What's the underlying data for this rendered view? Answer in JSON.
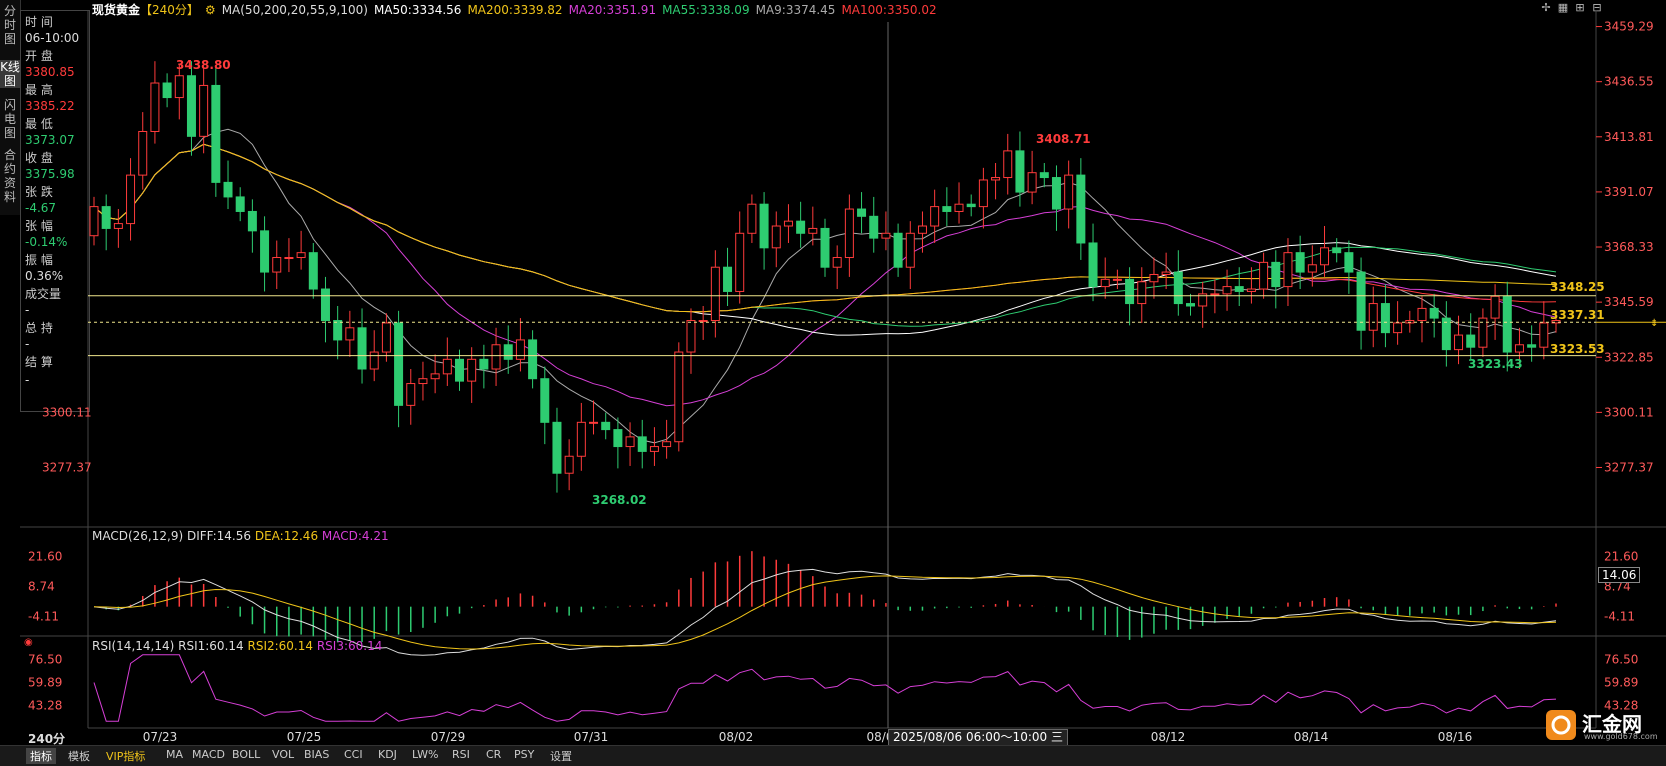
{
  "header": {
    "instrument": "现货黄金",
    "period": "【240分】",
    "ma_label": "MA(50,200,20,55,9,100)",
    "ma50": "MA50:3334.56",
    "ma200": "MA200:3339.82",
    "ma20": "MA20:3351.91",
    "ma55": "MA55:3338.09",
    "ma9": "MA9:3374.45",
    "ma100": "MA100:3350.02",
    "colors": {
      "ma50": "#ffffff",
      "ma200": "#f0c419",
      "ma20": "#d63fd6",
      "ma55": "#2ecc71",
      "ma9": "#aaaaaa",
      "ma100": "#ff3b3b"
    }
  },
  "left_tabs": [
    "分时图",
    "K线图",
    "闪电图",
    "合约资料"
  ],
  "info": {
    "time_label": "时 间",
    "time_value": "06-10:00",
    "open_label": "开 盘",
    "open_value": "3380.85",
    "high_label": "最 高",
    "high_value": "3385.22",
    "low_label": "最 低",
    "low_value": "3373.07",
    "close_label": "收 盘",
    "close_value": "3375.98",
    "change_label": "张 跌",
    "change_value": "-4.67",
    "pct_label": "张 幅",
    "pct_value": "-0.14%",
    "amp_label": "振 幅",
    "amp_value": "0.36%",
    "vol_label": "成交量",
    "vol_value": "-",
    "hold_label": "总 持",
    "hold_value": "-",
    "settle_label": "结 算",
    "settle_value": "-"
  },
  "chart_data": {
    "type": "candlestick",
    "title": "现货黄金",
    "y_axis_ticks": [
      3459.29,
      3436.55,
      3413.81,
      3391.07,
      3368.33,
      3345.59,
      3322.85,
      3300.11,
      3277.37
    ],
    "x_axis_ticks": [
      "07/23",
      "07/25",
      "07/29",
      "07/31",
      "08/02",
      "08/0",
      "08/12",
      "08/14",
      "08/16"
    ],
    "ylim": [
      3259,
      3462
    ],
    "annotations": {
      "high_label": "3438.80",
      "high2_label": "3408.71",
      "low_label": "3268.02",
      "low2_label": "3323.43",
      "hline1": "3348.25",
      "hline2": "3337.31",
      "hline3": "3323.53",
      "current": "3337.31"
    },
    "closes": [
      3385,
      3376,
      3378,
      3398,
      3416,
      3436,
      3430,
      3439,
      3414,
      3435,
      3395,
      3389,
      3383,
      3375,
      3358,
      3364,
      3364,
      3366,
      3351,
      3338,
      3330,
      3335,
      3318,
      3325,
      3337,
      3303,
      3312,
      3314,
      3316,
      3322,
      3313,
      3322,
      3318,
      3328,
      3322,
      3330,
      3314,
      3296,
      3275,
      3282,
      3296,
      3296,
      3293,
      3286,
      3290,
      3284,
      3286,
      3288,
      3325,
      3338,
      3338,
      3360,
      3350,
      3374,
      3386,
      3368,
      3377,
      3379,
      3374,
      3376,
      3360,
      3364,
      3384,
      3381,
      3372,
      3374,
      3360,
      3374,
      3377,
      3385,
      3383,
      3386,
      3385,
      3396,
      3397,
      3408,
      3391,
      3399,
      3397,
      3384,
      3398,
      3370,
      3352,
      3355,
      3355,
      3345,
      3354,
      3357,
      3358,
      3345,
      3344,
      3349,
      3349,
      3352,
      3350,
      3351,
      3362,
      3352,
      3366,
      3358,
      3361,
      3368,
      3366,
      3358,
      3334,
      3345,
      3333,
      3337,
      3338,
      3343,
      3339,
      3326,
      3332,
      3327,
      3339,
      3348,
      3325,
      3328,
      3327,
      3337,
      3338
    ],
    "macd": {
      "label": "MACD(26,12,9)",
      "diff": "DIFF:14.56",
      "dea": "DEA:12.46",
      "macd": "MACD:4.21",
      "ticks": [
        "21.60",
        "8.74",
        "-4.11"
      ],
      "current": "14.06"
    },
    "rsi": {
      "label": "RSI(14,14,14)",
      "rsi1": "RSI1:60.14",
      "rsi2": "RSI2:60.14",
      "rsi3": "RSI3:60.14",
      "ticks": [
        "76.50",
        "59.89",
        "43.28"
      ]
    },
    "crosshair_date": "2025/08/06 06:00～10:00 三"
  },
  "period_label": "240分",
  "bottom_tabs": [
    "指标",
    "模板",
    "VIP指标",
    "MA",
    "MACD",
    "BOLL",
    "VOL",
    "BIAS",
    "CCI",
    "KDJ",
    "LW%",
    "RSI",
    "CR",
    "PSY",
    "设置"
  ],
  "logo": {
    "name": "汇金网",
    "url": "www.gold678.com"
  }
}
